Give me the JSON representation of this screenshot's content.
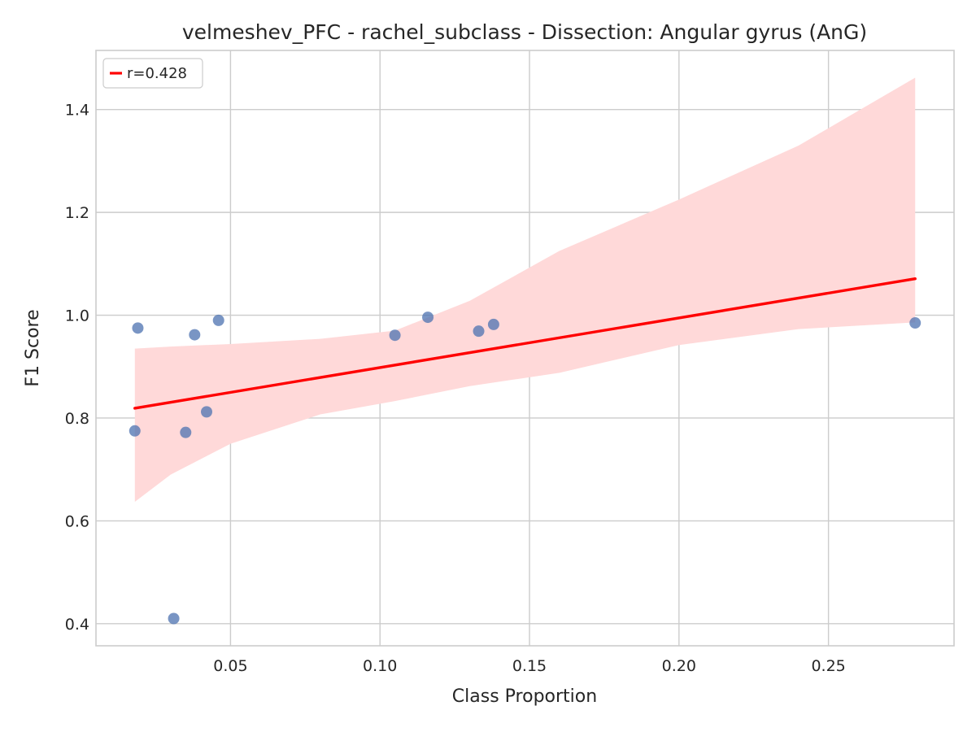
{
  "chart_data": {
    "type": "scatter",
    "title": "velmeshev_PFC - rachel_subclass - Dissection: Angular gyrus (AnG)",
    "xlabel": "Class Proportion",
    "ylabel": "F1 Score",
    "xlim": [
      0.005,
      0.292
    ],
    "ylim": [
      0.357,
      1.515
    ],
    "xticks": [
      0.05,
      0.1,
      0.15,
      0.2,
      0.25
    ],
    "xtick_labels": [
      "0.05",
      "0.10",
      "0.15",
      "0.20",
      "0.25"
    ],
    "yticks": [
      0.4,
      0.6,
      0.8,
      1.0,
      1.2,
      1.4
    ],
    "ytick_labels": [
      "0.4",
      "0.6",
      "0.8",
      "1.0",
      "1.2",
      "1.4"
    ],
    "grid": true,
    "legend_position": "top-left",
    "point_color": "#4c72b0",
    "points": [
      {
        "x": 0.018,
        "y": 0.775
      },
      {
        "x": 0.019,
        "y": 0.975
      },
      {
        "x": 0.031,
        "y": 0.41
      },
      {
        "x": 0.035,
        "y": 0.772
      },
      {
        "x": 0.038,
        "y": 0.962
      },
      {
        "x": 0.042,
        "y": 0.812
      },
      {
        "x": 0.046,
        "y": 0.99
      },
      {
        "x": 0.105,
        "y": 0.961
      },
      {
        "x": 0.116,
        "y": 0.996
      },
      {
        "x": 0.133,
        "y": 0.969
      },
      {
        "x": 0.138,
        "y": 0.982
      },
      {
        "x": 0.279,
        "y": 0.985
      }
    ],
    "regression": {
      "label": "r=0.428",
      "color": "#ff0000",
      "x": [
        0.018,
        0.279
      ],
      "y": [
        0.819,
        1.071
      ]
    },
    "confidence_band": {
      "color": "#ffd9d9",
      "x": [
        0.018,
        0.03,
        0.05,
        0.08,
        0.105,
        0.13,
        0.16,
        0.2,
        0.24,
        0.279
      ],
      "upper": [
        0.935,
        0.939,
        0.944,
        0.954,
        0.97,
        1.028,
        1.125,
        1.225,
        1.33,
        1.462
      ],
      "lower": [
        0.637,
        0.69,
        0.75,
        0.807,
        0.833,
        0.862,
        0.888,
        0.942,
        0.973,
        0.986
      ]
    }
  }
}
